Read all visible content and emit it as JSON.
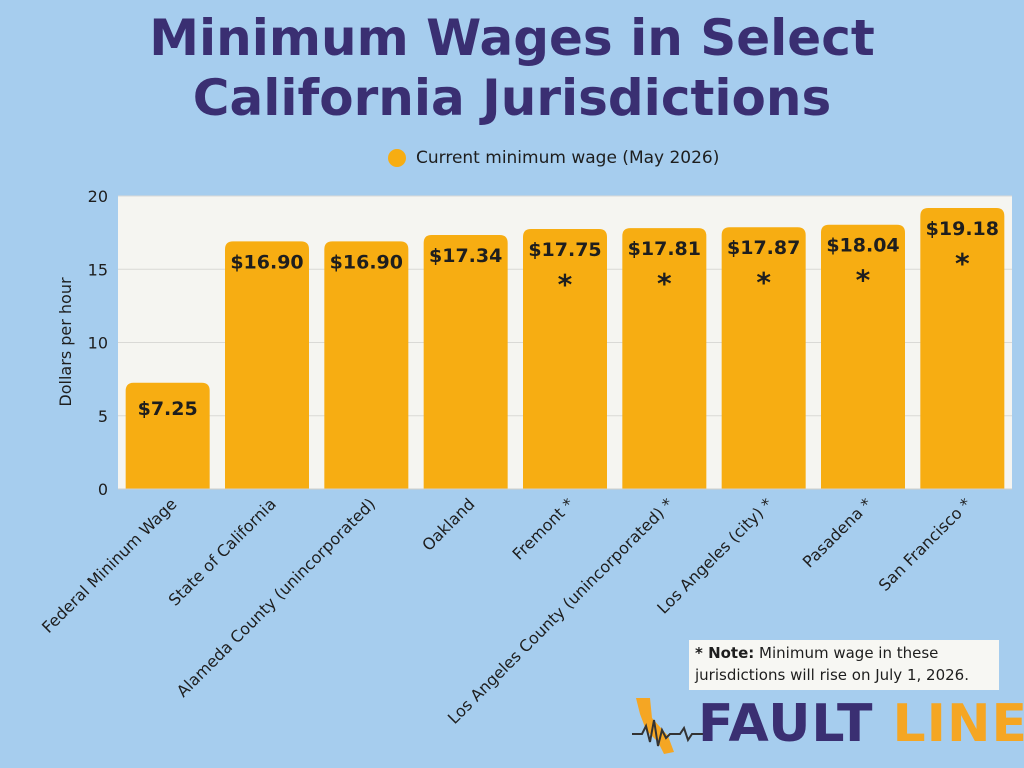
{
  "title": {
    "line1": "Minimum Wages in Select",
    "line2": "California Jurisdictions"
  },
  "colors": {
    "background": "#a6cdee",
    "plot_background": "#f5f5f1",
    "bar": "#f7ad12",
    "title": "#3a2f72",
    "logo_fault": "#3a2f72",
    "logo_line": "#f5a623"
  },
  "legend": {
    "label": "Current minimum wage (May 2026)"
  },
  "chart_data": {
    "type": "bar",
    "title": "Minimum Wages in Select California Jurisdictions",
    "ylabel": "Dollars per hour",
    "xlabel": "",
    "ylim": [
      0,
      20
    ],
    "yticks": [
      0,
      5,
      10,
      15,
      20
    ],
    "grid": true,
    "legend_position": "top",
    "categories": [
      "Federal Mininum Wage",
      "State of California",
      "Alameda County (unincorporated)",
      "Oakland",
      "Fremont *",
      "Los Angeles County (unincorporated) *",
      "Los Angeles (city) *",
      "Pasadena *",
      "San Francisco *"
    ],
    "series": [
      {
        "name": "Current minimum wage (May 2026)",
        "values": [
          7.25,
          16.9,
          16.9,
          17.34,
          17.75,
          17.81,
          17.87,
          18.04,
          19.18
        ]
      }
    ],
    "data_labels": [
      "$7.25",
      "$16.90",
      "$16.90",
      "$17.34",
      "$17.75",
      "$17.81",
      "$17.87",
      "$18.04",
      "$19.18"
    ],
    "asterisk_marks": [
      false,
      false,
      false,
      false,
      true,
      true,
      true,
      true,
      true
    ],
    "asterisk_symbol": "*"
  },
  "note": {
    "bold": "* Note:",
    "text": " Minimum wage in these jurisdictions will rise on July 1, 2026."
  },
  "logo": {
    "word1": "FAULT",
    "word2": "LINE"
  }
}
